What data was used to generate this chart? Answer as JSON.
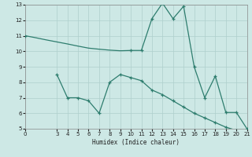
{
  "xlabel": "Humidex (Indice chaleur)",
  "background_color": "#cde8e5",
  "line_color": "#2e7d6e",
  "grid_color": "#aecfcc",
  "xlim": [
    0,
    21
  ],
  "ylim": [
    5,
    13
  ],
  "xticks": [
    0,
    3,
    4,
    5,
    6,
    7,
    8,
    9,
    10,
    11,
    12,
    13,
    14,
    15,
    16,
    17,
    18,
    19,
    20,
    21
  ],
  "yticks": [
    5,
    6,
    7,
    8,
    9,
    10,
    11,
    12,
    13
  ],
  "series1_x": [
    0,
    1,
    2,
    3,
    4,
    5,
    6,
    7,
    8,
    9,
    10,
    11,
    12,
    13,
    14,
    15,
    16,
    17,
    18,
    19,
    20,
    21
  ],
  "series1_y": [
    11.0,
    10.87,
    10.73,
    10.6,
    10.47,
    10.33,
    10.2,
    10.13,
    10.07,
    10.03,
    10.05,
    10.05,
    12.1,
    13.1,
    12.1,
    12.9,
    9.0,
    7.0,
    8.4,
    6.05,
    6.05,
    5.0
  ],
  "markers1_x": [
    0,
    10,
    11,
    12,
    13,
    14,
    15,
    16,
    17,
    18,
    19,
    20,
    21
  ],
  "markers1_y": [
    11.0,
    10.05,
    10.05,
    12.1,
    13.1,
    12.1,
    12.9,
    9.0,
    7.0,
    8.4,
    6.05,
    6.05,
    5.0
  ],
  "series2_x": [
    3,
    4,
    5,
    6,
    7,
    8,
    9,
    10,
    11,
    12,
    13,
    14,
    15,
    16,
    17,
    18,
    19,
    20,
    21
  ],
  "series2_y": [
    8.5,
    7.0,
    7.0,
    6.8,
    6.0,
    8.0,
    8.5,
    8.3,
    8.1,
    7.5,
    7.2,
    6.8,
    6.4,
    6.0,
    5.7,
    5.4,
    5.1,
    4.9,
    4.8
  ],
  "markers2_x": [
    3,
    4,
    5,
    6,
    7,
    8,
    9,
    10,
    11,
    12,
    13,
    14,
    15,
    16,
    17,
    18,
    19,
    20,
    21
  ],
  "markers2_y": [
    8.5,
    7.0,
    7.0,
    6.8,
    6.0,
    8.0,
    8.5,
    8.3,
    8.1,
    7.5,
    7.2,
    6.8,
    6.4,
    6.0,
    5.7,
    5.4,
    5.1,
    4.9,
    4.8
  ]
}
